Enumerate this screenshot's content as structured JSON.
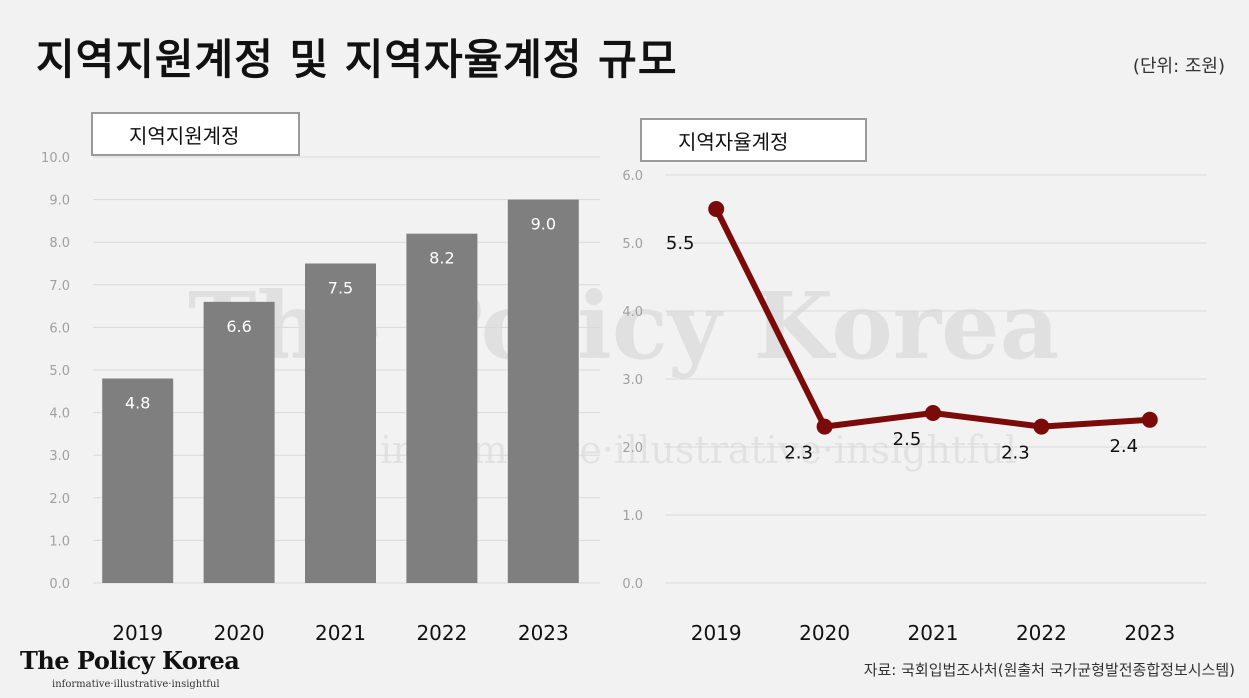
{
  "header": {
    "title": "지역지원계정 및 지역자율계정 규모",
    "unit": "(단위: 조원)"
  },
  "watermark": {
    "text": "The Policy Korea",
    "sub": "informative·illustrative·insightful"
  },
  "footer": {
    "logo": "The Policy Korea",
    "logo_sub": "informative·illustrative·insightful",
    "source": "자료: 국회입법조사처(원출처 국가균형발전종합정보시스템)"
  },
  "chart_data": [
    {
      "type": "bar",
      "title": "지역지원계정",
      "categories": [
        "2019",
        "2020",
        "2021",
        "2022",
        "2023"
      ],
      "values": [
        4.8,
        6.6,
        7.5,
        8.2,
        9.0
      ],
      "data_labels": [
        "4.8",
        "6.6",
        "7.5",
        "8.2",
        "9.0"
      ],
      "ylim": [
        0,
        10
      ],
      "yticks": [
        "0.0",
        "1.0",
        "2.0",
        "3.0",
        "4.0",
        "5.0",
        "6.0",
        "7.0",
        "8.0",
        "9.0",
        "10.0"
      ],
      "grid": true,
      "color": "#7f7f7f"
    },
    {
      "type": "line",
      "title": "지역자율계정",
      "categories": [
        "2019",
        "2020",
        "2021",
        "2022",
        "2023"
      ],
      "values": [
        5.5,
        2.3,
        2.5,
        2.3,
        2.4
      ],
      "data_labels": [
        "5.5",
        "2.3",
        "2.5",
        "2.3",
        "2.4"
      ],
      "ylim": [
        0,
        6
      ],
      "yticks": [
        "0.0",
        "1.0",
        "2.0",
        "3.0",
        "4.0",
        "5.0",
        "6.0"
      ],
      "grid": true,
      "color": "#7b0a0a"
    }
  ]
}
